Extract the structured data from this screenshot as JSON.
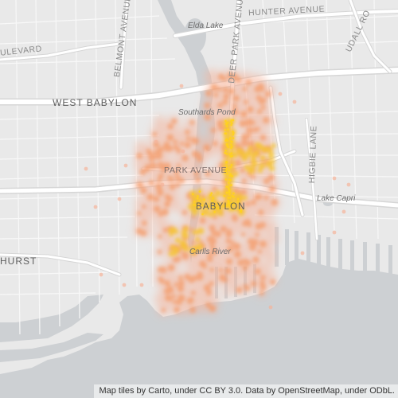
{
  "map": {
    "colors": {
      "land": "#e9e9e9",
      "water": "#cdd0d3",
      "road": "#ffffff",
      "road_casing": "#d6d6d6",
      "heat_outer": "#f5b39a",
      "heat_mid": "#f49a66",
      "heat_core": "#f6c531",
      "heat_dot": "#ffd21f"
    },
    "labels": {
      "elda_lake": "Elda Lake",
      "hunter_avenue": "HUNTER AVENUE",
      "udall_road": "UDALL RO",
      "boulevard": "ULEVARD",
      "belmont_avenue": "BELMONT AVENUE",
      "deer_park_avenue": "DEER PARK AVENUE",
      "west_babylon": "WEST BABYLON",
      "southards_pond": "Southards Pond",
      "park_avenue": "PARK AVENUE",
      "higbie_lane": "HIGBIE LANE",
      "lake_capri": "Lake Capri",
      "babylon": "BABYLON",
      "hurst": "HURST",
      "carlls_river": "Carlls River"
    },
    "attribution": "Map tiles by Carto, under CC BY 3.0. Data by OpenStreetMap, under ODbL."
  }
}
